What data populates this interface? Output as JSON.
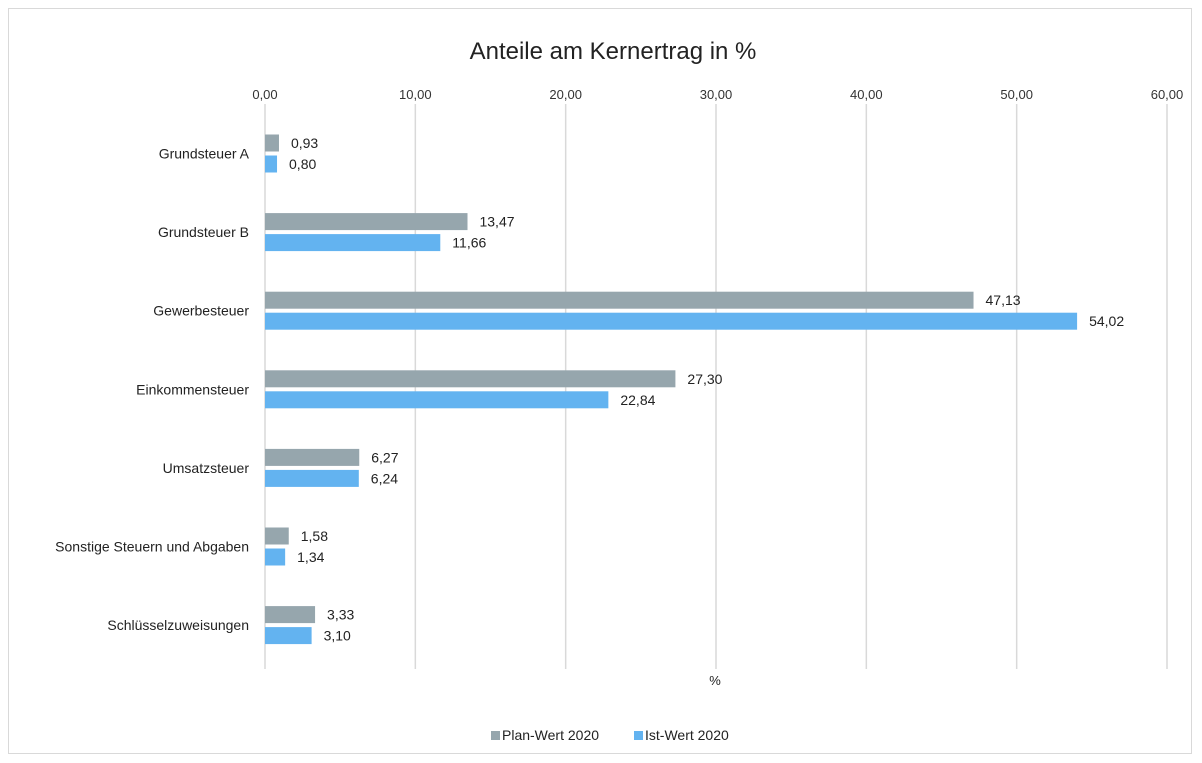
{
  "chart_data": {
    "type": "bar",
    "orientation": "horizontal",
    "title": "Anteile am Kernertrag in %",
    "xlabel": "%",
    "ylabel": "",
    "xlim": [
      0,
      60
    ],
    "x_ticks": [
      "0,00",
      "10,00",
      "20,00",
      "30,00",
      "40,00",
      "50,00",
      "60,00"
    ],
    "x_tick_values": [
      0,
      10,
      20,
      30,
      40,
      50,
      60
    ],
    "x_axis_position": "top",
    "grid": true,
    "legend_position": "bottom",
    "categories": [
      "Grundsteuer A",
      "Grundsteuer B",
      "Gewerbesteuer",
      "Einkommensteuer",
      "Umsatzsteuer",
      "Sonstige Steuern und Abgaben",
      "Schlüsselzuweisungen"
    ],
    "series": [
      {
        "name": "Plan-Wert 2020",
        "color": "#96a6ad",
        "values": [
          0.93,
          13.47,
          47.13,
          27.3,
          6.27,
          1.58,
          3.33
        ],
        "labels": [
          "0,93",
          "13,47",
          "47,13",
          "27,30",
          "6,27",
          "1,58",
          "3,33"
        ]
      },
      {
        "name": "Ist-Wert 2020",
        "color": "#63b3f0",
        "values": [
          0.8,
          11.66,
          54.02,
          22.84,
          6.24,
          1.34,
          3.1
        ],
        "labels": [
          "0,80",
          "11,66",
          "54,02",
          "22,84",
          "6,24",
          "1,34",
          "3,10"
        ]
      }
    ]
  }
}
